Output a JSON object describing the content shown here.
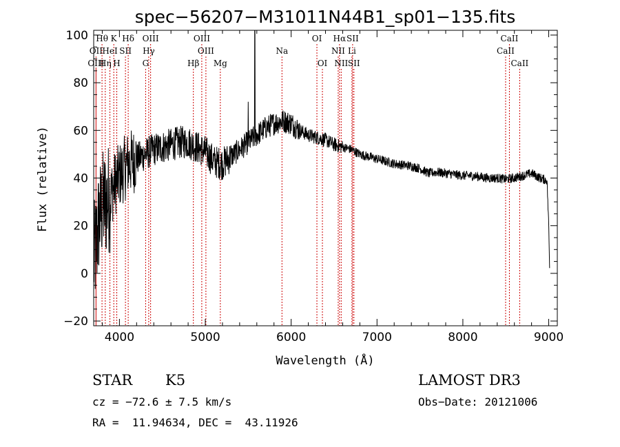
{
  "chart_data": {
    "type": "line",
    "title": "spec−56207−M31011N44B1_sp01−135.fits",
    "xlabel": "Wavelength (Å)",
    "ylabel": "Flux (relative)",
    "xlim": [
      3700,
      9100
    ],
    "ylim": [
      -22,
      102
    ],
    "x_ticks": [
      4000,
      5000,
      6000,
      7000,
      8000,
      9000
    ],
    "y_ticks": [
      -20,
      0,
      20,
      40,
      60,
      80,
      100
    ],
    "y_tick_labels": [
      "−20",
      "0",
      "20",
      "40",
      "60",
      "80",
      "100"
    ],
    "line_color": "#000000",
    "marker_color": "#cc0000",
    "spectrum_anchors": [
      [
        3700,
        5
      ],
      [
        3730,
        12
      ],
      [
        3760,
        22
      ],
      [
        3800,
        28
      ],
      [
        3850,
        30
      ],
      [
        3900,
        33
      ],
      [
        3950,
        38
      ],
      [
        4000,
        41
      ],
      [
        4100,
        46
      ],
      [
        4200,
        48
      ],
      [
        4300,
        50
      ],
      [
        4400,
        52
      ],
      [
        4500,
        53
      ],
      [
        4600,
        54
      ],
      [
        4700,
        55
      ],
      [
        4800,
        55
      ],
      [
        4900,
        53
      ],
      [
        5000,
        51
      ],
      [
        5100,
        47
      ],
      [
        5200,
        46
      ],
      [
        5300,
        49
      ],
      [
        5400,
        52
      ],
      [
        5500,
        55
      ],
      [
        5600,
        58
      ],
      [
        5700,
        61
      ],
      [
        5800,
        63
      ],
      [
        5900,
        64
      ],
      [
        6000,
        63
      ],
      [
        6100,
        60
      ],
      [
        6200,
        58
      ],
      [
        6300,
        57
      ],
      [
        6400,
        56
      ],
      [
        6500,
        54
      ],
      [
        6600,
        53
      ],
      [
        6700,
        52
      ],
      [
        6800,
        50
      ],
      [
        6900,
        49
      ],
      [
        7000,
        48
      ],
      [
        7100,
        47
      ],
      [
        7200,
        46
      ],
      [
        7300,
        45.5
      ],
      [
        7400,
        45
      ],
      [
        7500,
        44
      ],
      [
        7600,
        42
      ],
      [
        7700,
        42.5
      ],
      [
        7800,
        42
      ],
      [
        7900,
        41.5
      ],
      [
        8000,
        41
      ],
      [
        8100,
        41
      ],
      [
        8200,
        40.5
      ],
      [
        8300,
        40
      ],
      [
        8400,
        40
      ],
      [
        8500,
        39.5
      ],
      [
        8600,
        40
      ],
      [
        8700,
        41
      ],
      [
        8800,
        42
      ],
      [
        8900,
        40
      ],
      [
        8980,
        39
      ],
      [
        9000,
        20
      ],
      [
        9010,
        3
      ]
    ],
    "spikes": [
      [
        5577,
        102
      ],
      [
        5500,
        72
      ]
    ],
    "lines": [
      {
        "name": "Hθ",
        "x": 3797,
        "row": 0
      },
      {
        "name": "K",
        "x": 3934,
        "row": 0
      },
      {
        "name": "Hδ",
        "x": 4102,
        "row": 0
      },
      {
        "name": "OIII",
        "x": 4363,
        "row": 0
      },
      {
        "name": "OIII",
        "x": 4959,
        "row": 0
      },
      {
        "name": "OI",
        "x": 6300,
        "row": 0
      },
      {
        "name": "Hα",
        "x": 6563,
        "row": 0
      },
      {
        "name": "SII",
        "x": 6716,
        "row": 0
      },
      {
        "name": "CaII",
        "x": 8542,
        "row": 0
      },
      {
        "name": "OII",
        "x": 3727,
        "row": 1
      },
      {
        "name": "HeI",
        "x": 3889,
        "row": 1
      },
      {
        "name": "SII",
        "x": 4070,
        "row": 1
      },
      {
        "name": "Hγ",
        "x": 4341,
        "row": 1
      },
      {
        "name": "OIII",
        "x": 5007,
        "row": 1
      },
      {
        "name": "Na",
        "x": 5893,
        "row": 1
      },
      {
        "name": "NII",
        "x": 6548,
        "row": 1
      },
      {
        "name": "Li",
        "x": 6708,
        "row": 1
      },
      {
        "name": "CaII",
        "x": 8498,
        "row": 1
      },
      {
        "name": "OIII",
        "x": 3727,
        "row": 2
      },
      {
        "name": "Hη",
        "x": 3835,
        "row": 2
      },
      {
        "name": "H",
        "x": 3969,
        "row": 2
      },
      {
        "name": "G",
        "x": 4305,
        "row": 2
      },
      {
        "name": "Hβ",
        "x": 4861,
        "row": 2
      },
      {
        "name": "Mg",
        "x": 5175,
        "row": 2
      },
      {
        "name": "OI",
        "x": 6364,
        "row": 2
      },
      {
        "name": "NII",
        "x": 6583,
        "row": 2
      },
      {
        "name": "SII",
        "x": 6731,
        "row": 2
      },
      {
        "name": "CaII",
        "x": 8662,
        "row": 2
      }
    ]
  },
  "info": {
    "object_class": "STAR",
    "subclass": "K5",
    "survey": "LAMOST DR3",
    "cz": "cz = −72.6 ± 7.5 km/s",
    "obs_date": "Obs−Date: 20121006",
    "coords": "RA =  11.94634, DEC =  43.11926"
  }
}
